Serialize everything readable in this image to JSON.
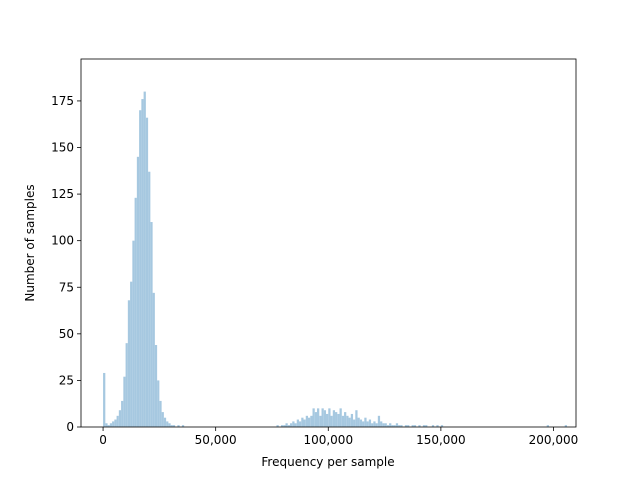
{
  "chart_data": {
    "type": "histogram",
    "xlabel": "Frequency per sample",
    "ylabel": "Number of samples",
    "color": "#a6c8e0",
    "xlim": [
      -9800,
      210000
    ],
    "ylim": [
      0,
      197.5
    ],
    "xticks": [
      0,
      {
        "value": 50000,
        "label": "50,000"
      },
      {
        "value": 100000,
        "label": "100,000"
      },
      {
        "value": 150000,
        "label": "150,000"
      },
      {
        "value": 200000,
        "label": "200,000"
      }
    ],
    "yticks": [
      0,
      25,
      50,
      75,
      100,
      125,
      150,
      175
    ],
    "bins": [
      0,
      1000,
      2000,
      3000,
      4000,
      5000,
      6000,
      7000,
      8000,
      9000,
      10000,
      11000,
      12000,
      13000,
      14000,
      15000,
      16000,
      17000,
      18000,
      19000,
      20000,
      21000,
      22000,
      23000,
      24000,
      25000,
      26000,
      27000,
      28000,
      29000,
      30000,
      31000,
      32000,
      33000,
      34000,
      35000,
      36000,
      37000,
      38000,
      39000,
      40000,
      41000,
      42000,
      43000,
      44000,
      45000,
      46000,
      47000,
      48000,
      49000,
      50000,
      51000,
      52000,
      53000,
      54000,
      55000,
      56000,
      57000,
      58000,
      59000,
      60000,
      61000,
      62000,
      63000,
      64000,
      65000,
      66000,
      67000,
      68000,
      69000,
      70000,
      71000,
      72000,
      73000,
      74000,
      75000,
      76000,
      77000,
      78000,
      79000,
      80000,
      81000,
      82000,
      83000,
      84000,
      85000,
      86000,
      87000,
      88000,
      89000,
      90000,
      91000,
      92000,
      93000,
      94000,
      95000,
      96000,
      97000,
      98000,
      99000,
      100000,
      101000,
      102000,
      103000,
      104000,
      105000,
      106000,
      107000,
      108000,
      109000,
      110000,
      111000,
      112000,
      113000,
      114000,
      115000,
      116000,
      117000,
      118000,
      119000,
      120000,
      121000,
      122000,
      123000,
      124000,
      125000,
      126000,
      127000,
      128000,
      129000,
      130000,
      131000,
      132000,
      133000,
      134000,
      135000,
      136000,
      137000,
      138000,
      139000,
      140000,
      141000,
      142000,
      143000,
      144000,
      145000,
      146000,
      147000,
      148000,
      149000,
      150000,
      151000,
      152000,
      153000,
      154000,
      155000,
      156000,
      157000,
      158000,
      159000,
      160000,
      161000,
      162000,
      163000,
      164000,
      165000,
      166000,
      167000,
      168000,
      169000,
      170000,
      171000,
      172000,
      173000,
      174000,
      175000,
      176000,
      177000,
      178000,
      179000,
      180000,
      181000,
      182000,
      183000,
      184000,
      185000,
      186000,
      187000,
      188000,
      189000,
      190000,
      191000,
      192000,
      193000,
      194000,
      195000,
      196000,
      197000,
      198000,
      199000,
      200000,
      201000,
      202000,
      203000,
      204000,
      205000,
      206000
    ],
    "values": [
      29,
      2,
      1,
      2,
      3,
      4,
      6,
      9,
      14,
      27,
      45,
      68,
      78,
      100,
      123,
      145,
      170,
      176,
      180,
      166,
      137,
      110,
      72,
      44,
      25,
      14,
      8,
      5,
      3,
      2,
      1,
      1,
      0,
      1,
      0,
      1,
      0,
      0,
      0,
      0,
      0,
      0,
      0,
      0,
      0,
      0,
      0,
      0,
      0,
      0,
      0,
      0,
      0,
      0,
      0,
      0,
      0,
      0,
      0,
      0,
      0,
      0,
      0,
      0,
      0,
      0,
      0,
      0,
      0,
      0,
      0,
      0,
      0,
      0,
      0,
      0,
      0,
      1,
      0,
      1,
      1,
      2,
      1,
      2,
      3,
      2,
      4,
      3,
      5,
      4,
      6,
      5,
      6,
      10,
      8,
      10,
      6,
      10,
      9,
      7,
      10,
      6,
      9,
      8,
      7,
      10,
      6,
      8,
      6,
      5,
      7,
      4,
      9,
      5,
      4,
      3,
      5,
      3,
      4,
      2,
      3,
      2,
      6,
      3,
      2,
      2,
      1,
      2,
      1,
      1,
      2,
      1,
      1,
      0,
      1,
      1,
      0,
      1,
      1,
      0,
      1,
      0,
      1,
      1,
      0,
      0,
      1,
      0,
      1,
      0,
      1,
      0,
      0,
      0,
      0,
      0,
      0,
      0,
      0,
      0,
      0,
      0,
      0,
      0,
      0,
      0,
      0,
      0,
      0,
      0,
      0,
      0,
      0,
      0,
      0,
      0,
      0,
      0,
      0,
      0,
      0,
      0,
      0,
      0,
      0,
      0,
      0,
      0,
      0,
      0,
      0,
      0,
      0,
      0,
      0,
      0,
      0,
      1,
      0,
      0,
      0,
      0,
      0,
      0,
      0,
      1
    ]
  }
}
